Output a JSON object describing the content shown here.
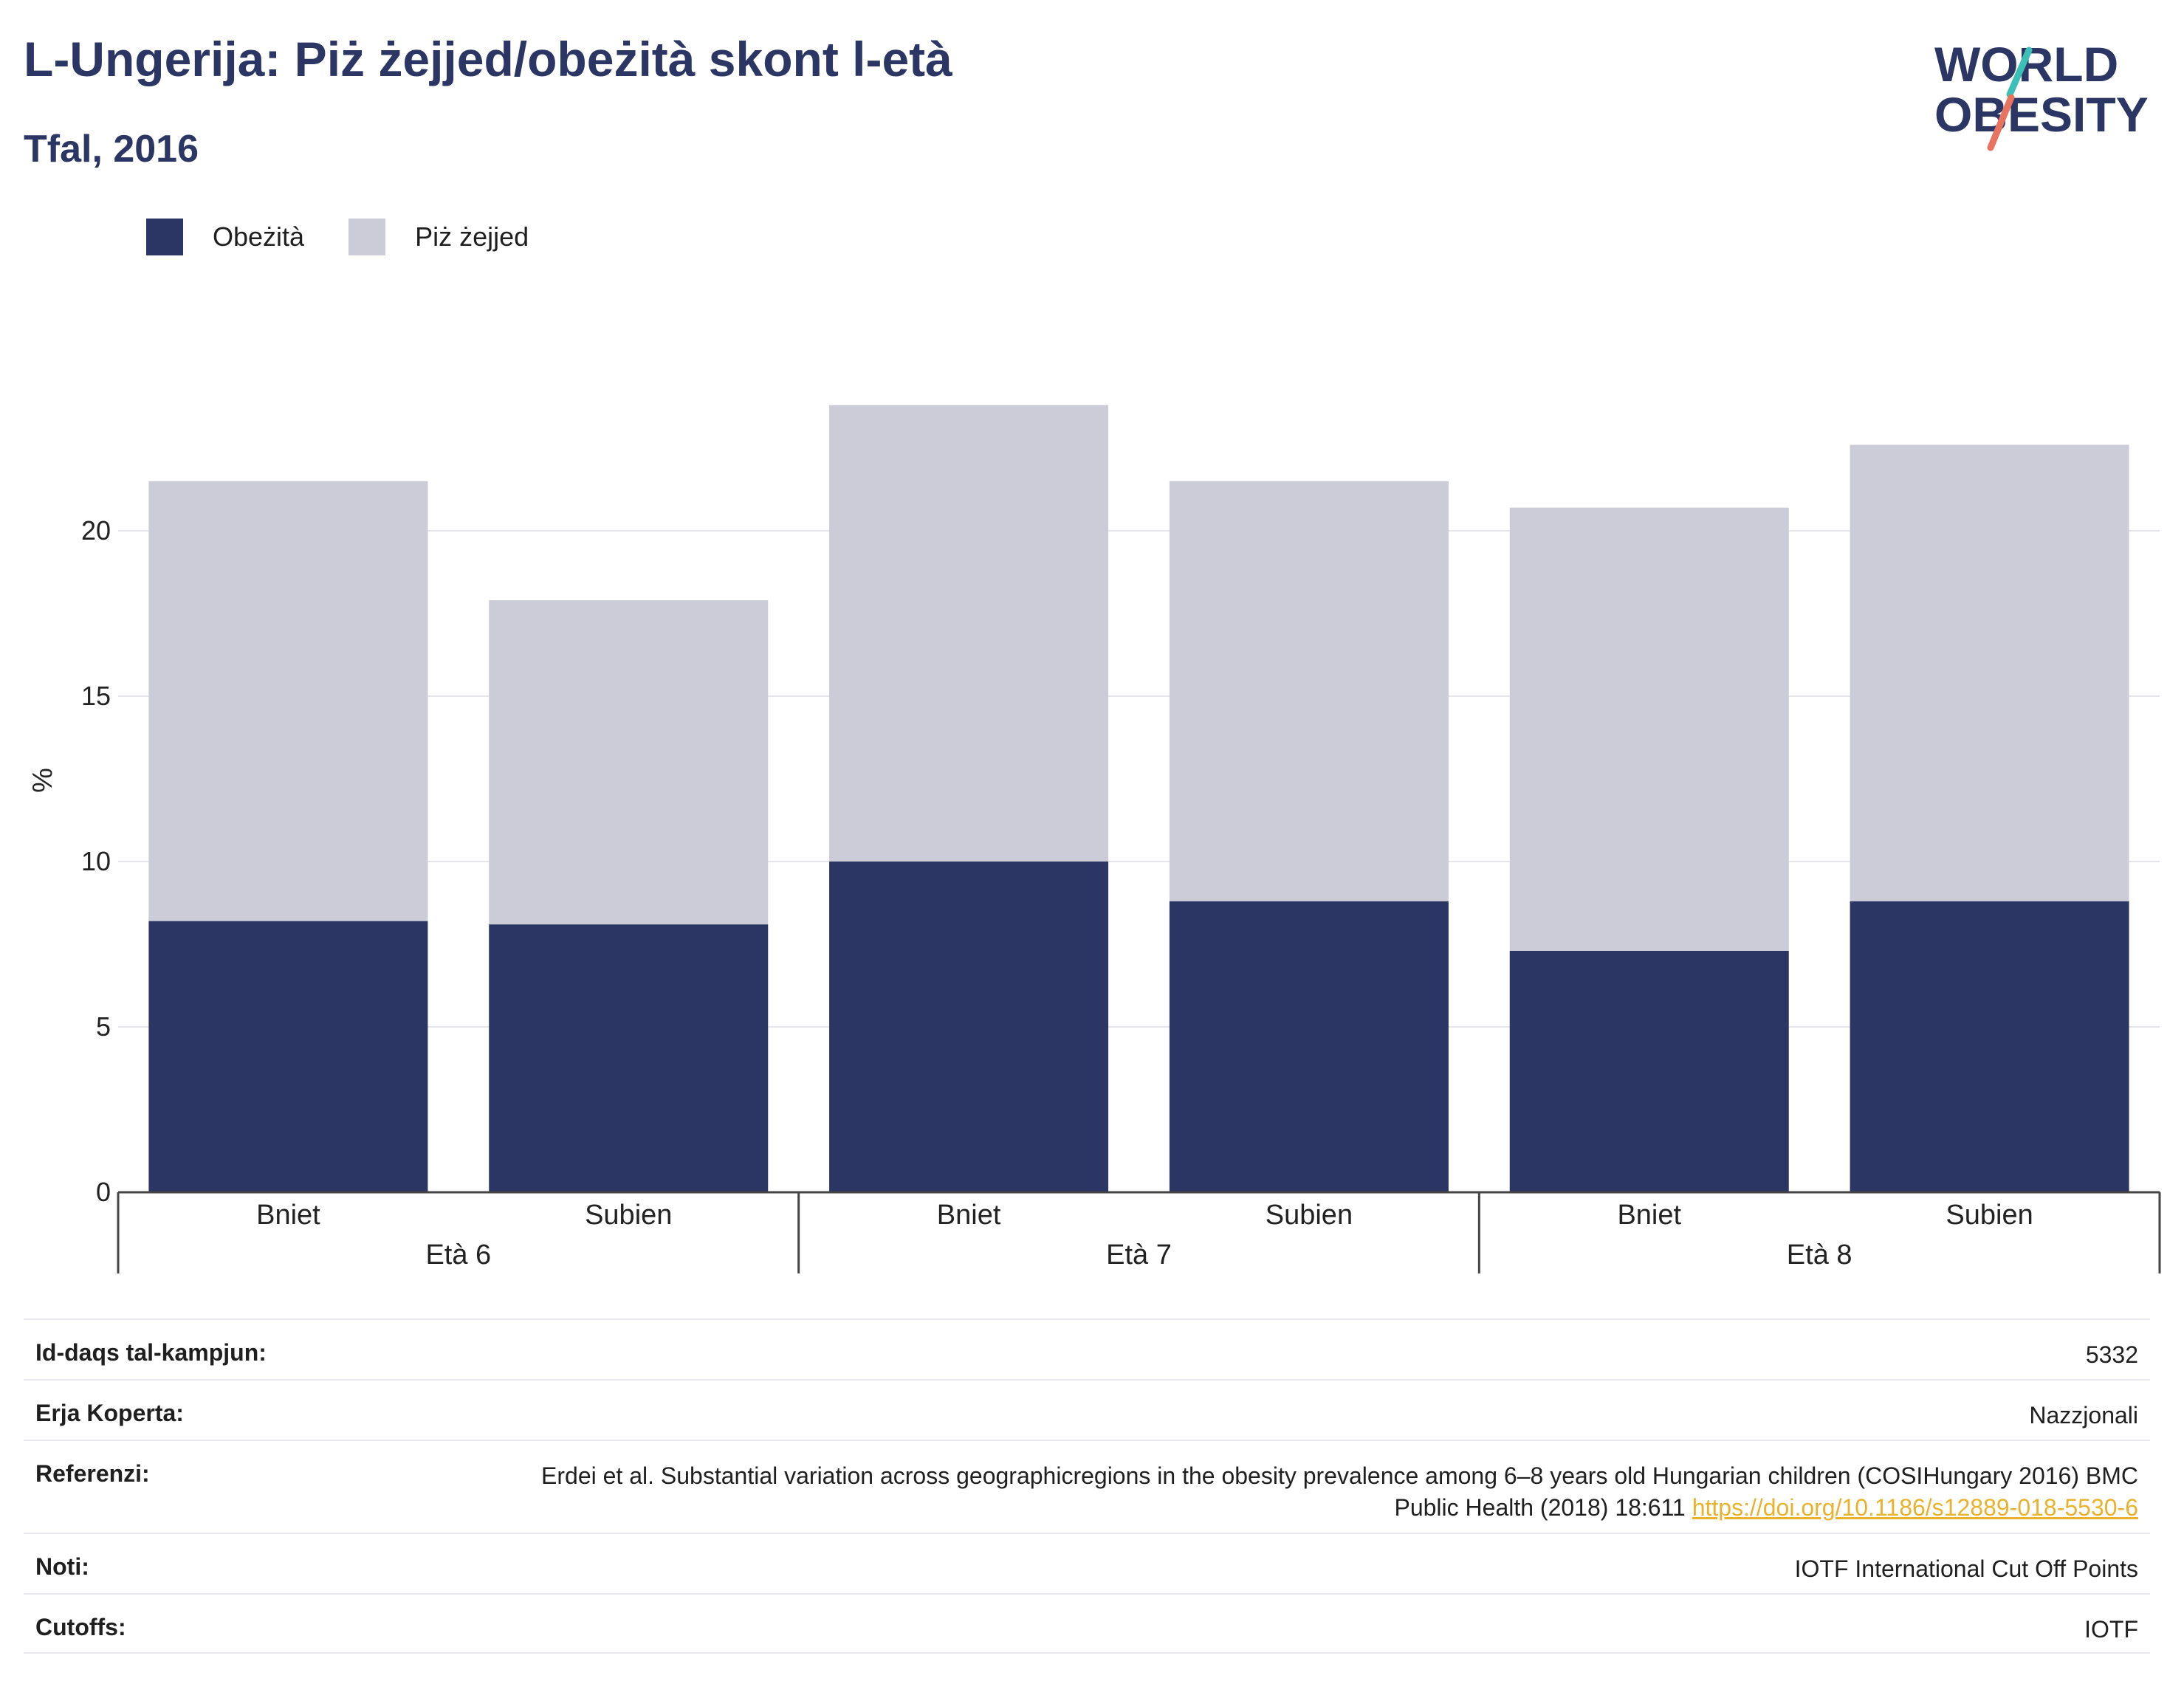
{
  "header": {
    "title": "L-Ungerija: Piż żejjed/obeżità skont l-età",
    "subtitle": "Tfal, 2016"
  },
  "logo": {
    "line1": "WORLD",
    "line2": "OBESITY",
    "icon": "world-obesity-logo"
  },
  "colors": {
    "obesity": "#2b3665",
    "overweight": "#cbccd8",
    "accent_teal": "#3bbfb6",
    "accent_coral": "#e8735f",
    "link": "#e8b22c"
  },
  "chart_data": {
    "type": "bar",
    "stacked": true,
    "ylabel": "%",
    "ylim": [
      0,
      25
    ],
    "yticks": [
      0,
      5,
      10,
      15,
      20
    ],
    "grid": true,
    "legend_position": "top-left",
    "groups": [
      "Età 6",
      "Età 7",
      "Età 8"
    ],
    "categories": [
      "Bniet",
      "Subien",
      "Bniet",
      "Subien",
      "Bniet",
      "Subien"
    ],
    "series": [
      {
        "name": "Obeżità",
        "values": [
          8.2,
          8.1,
          10.0,
          8.8,
          7.3,
          8.8
        ]
      },
      {
        "name": "Piż żejjed",
        "values": [
          13.3,
          9.8,
          13.8,
          12.7,
          13.4,
          13.8
        ]
      }
    ]
  },
  "meta": {
    "rows": [
      {
        "label": "Id-daqs tal-kampjun:",
        "value": "5332"
      },
      {
        "label": "Erja Koperta:",
        "value": "Nazzjonali"
      },
      {
        "label": "Referenzi:",
        "value": "Erdei et al. Substantial variation across geographicregions in the obesity prevalence among 6–8 years old Hungarian children (COSIHungary 2016) BMC Public Health (2018) 18:611",
        "link": "https://doi.org/10.1186/s12889-018-5530-6"
      },
      {
        "label": "Noti:",
        "value": "IOTF International Cut Off Points"
      },
      {
        "label": "Cutoffs:",
        "value": "IOTF"
      }
    ]
  }
}
